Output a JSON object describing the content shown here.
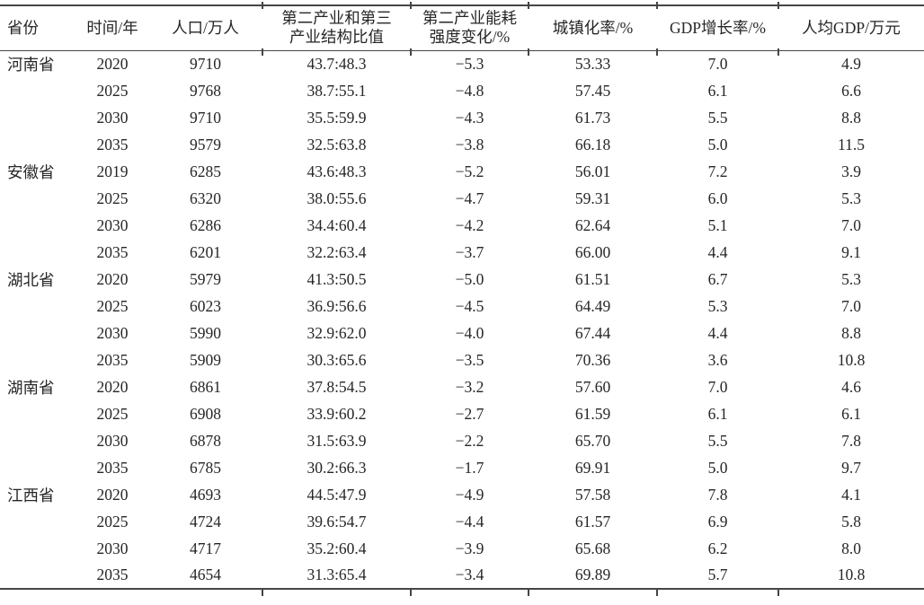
{
  "colors": {
    "text": "#262626",
    "rule": "#454545",
    "background": "#ffffff"
  },
  "table": {
    "headers": {
      "province": "省份",
      "year": "时间/年",
      "population": "人口/万人",
      "industry_ratio": [
        "第二产业和第三",
        "产业结构比值"
      ],
      "energy_intensity": [
        "第二产业能耗",
        "强度变化/%"
      ],
      "urbanization": "城镇化率/%",
      "gdp_growth": "GDP增长率/%",
      "gdp_per_capita": "人均GDP/万元"
    },
    "groups": [
      {
        "province": "河南省",
        "rows": [
          {
            "year": "2020",
            "population": "9710",
            "industry_ratio": "43.7:48.3",
            "energy_intensity": "−5.3",
            "urbanization": "53.33",
            "gdp_growth": "7.0",
            "gdp_per_capita": "4.9"
          },
          {
            "year": "2025",
            "population": "9768",
            "industry_ratio": "38.7:55.1",
            "energy_intensity": "−4.8",
            "urbanization": "57.45",
            "gdp_growth": "6.1",
            "gdp_per_capita": "6.6"
          },
          {
            "year": "2030",
            "population": "9710",
            "industry_ratio": "35.5:59.9",
            "energy_intensity": "−4.3",
            "urbanization": "61.73",
            "gdp_growth": "5.5",
            "gdp_per_capita": "8.8"
          },
          {
            "year": "2035",
            "population": "9579",
            "industry_ratio": "32.5:63.8",
            "energy_intensity": "−3.8",
            "urbanization": "66.18",
            "gdp_growth": "5.0",
            "gdp_per_capita": "11.5"
          }
        ]
      },
      {
        "province": "安徽省",
        "rows": [
          {
            "year": "2019",
            "population": "6285",
            "industry_ratio": "43.6:48.3",
            "energy_intensity": "−5.2",
            "urbanization": "56.01",
            "gdp_growth": "7.2",
            "gdp_per_capita": "3.9"
          },
          {
            "year": "2025",
            "population": "6320",
            "industry_ratio": "38.0:55.6",
            "energy_intensity": "−4.7",
            "urbanization": "59.31",
            "gdp_growth": "6.0",
            "gdp_per_capita": "5.3"
          },
          {
            "year": "2030",
            "population": "6286",
            "industry_ratio": "34.4:60.4",
            "energy_intensity": "−4.2",
            "urbanization": "62.64",
            "gdp_growth": "5.1",
            "gdp_per_capita": "7.0"
          },
          {
            "year": "2035",
            "population": "6201",
            "industry_ratio": "32.2:63.4",
            "energy_intensity": "−3.7",
            "urbanization": "66.00",
            "gdp_growth": "4.4",
            "gdp_per_capita": "9.1"
          }
        ]
      },
      {
        "province": "湖北省",
        "rows": [
          {
            "year": "2020",
            "population": "5979",
            "industry_ratio": "41.3:50.5",
            "energy_intensity": "−5.0",
            "urbanization": "61.51",
            "gdp_growth": "6.7",
            "gdp_per_capita": "5.3"
          },
          {
            "year": "2025",
            "population": "6023",
            "industry_ratio": "36.9:56.6",
            "energy_intensity": "−4.5",
            "urbanization": "64.49",
            "gdp_growth": "5.3",
            "gdp_per_capita": "7.0"
          },
          {
            "year": "2030",
            "population": "5990",
            "industry_ratio": "32.9:62.0",
            "energy_intensity": "−4.0",
            "urbanization": "67.44",
            "gdp_growth": "4.4",
            "gdp_per_capita": "8.8"
          },
          {
            "year": "2035",
            "population": "5909",
            "industry_ratio": "30.3:65.6",
            "energy_intensity": "−3.5",
            "urbanization": "70.36",
            "gdp_growth": "3.6",
            "gdp_per_capita": "10.8"
          }
        ]
      },
      {
        "province": "湖南省",
        "rows": [
          {
            "year": "2020",
            "population": "6861",
            "industry_ratio": "37.8:54.5",
            "energy_intensity": "−3.2",
            "urbanization": "57.60",
            "gdp_growth": "7.0",
            "gdp_per_capita": "4.6"
          },
          {
            "year": "2025",
            "population": "6908",
            "industry_ratio": "33.9:60.2",
            "energy_intensity": "−2.7",
            "urbanization": "61.59",
            "gdp_growth": "6.1",
            "gdp_per_capita": "6.1"
          },
          {
            "year": "2030",
            "population": "6878",
            "industry_ratio": "31.5:63.9",
            "energy_intensity": "−2.2",
            "urbanization": "65.70",
            "gdp_growth": "5.5",
            "gdp_per_capita": "7.8"
          },
          {
            "year": "2035",
            "population": "6785",
            "industry_ratio": "30.2:66.3",
            "energy_intensity": "−1.7",
            "urbanization": "69.91",
            "gdp_growth": "5.0",
            "gdp_per_capita": "9.7"
          }
        ]
      },
      {
        "province": "江西省",
        "rows": [
          {
            "year": "2020",
            "population": "4693",
            "industry_ratio": "44.5:47.9",
            "energy_intensity": "−4.9",
            "urbanization": "57.58",
            "gdp_growth": "7.8",
            "gdp_per_capita": "4.1"
          },
          {
            "year": "2025",
            "population": "4724",
            "industry_ratio": "39.6:54.7",
            "energy_intensity": "−4.4",
            "urbanization": "61.57",
            "gdp_growth": "6.9",
            "gdp_per_capita": "5.8"
          },
          {
            "year": "2030",
            "population": "4717",
            "industry_ratio": "35.2:60.4",
            "energy_intensity": "−3.9",
            "urbanization": "65.68",
            "gdp_growth": "6.2",
            "gdp_per_capita": "8.0"
          },
          {
            "year": "2035",
            "population": "4654",
            "industry_ratio": "31.3:65.4",
            "energy_intensity": "−3.4",
            "urbanization": "69.89",
            "gdp_growth": "5.7",
            "gdp_per_capita": "10.8"
          }
        ]
      }
    ]
  }
}
